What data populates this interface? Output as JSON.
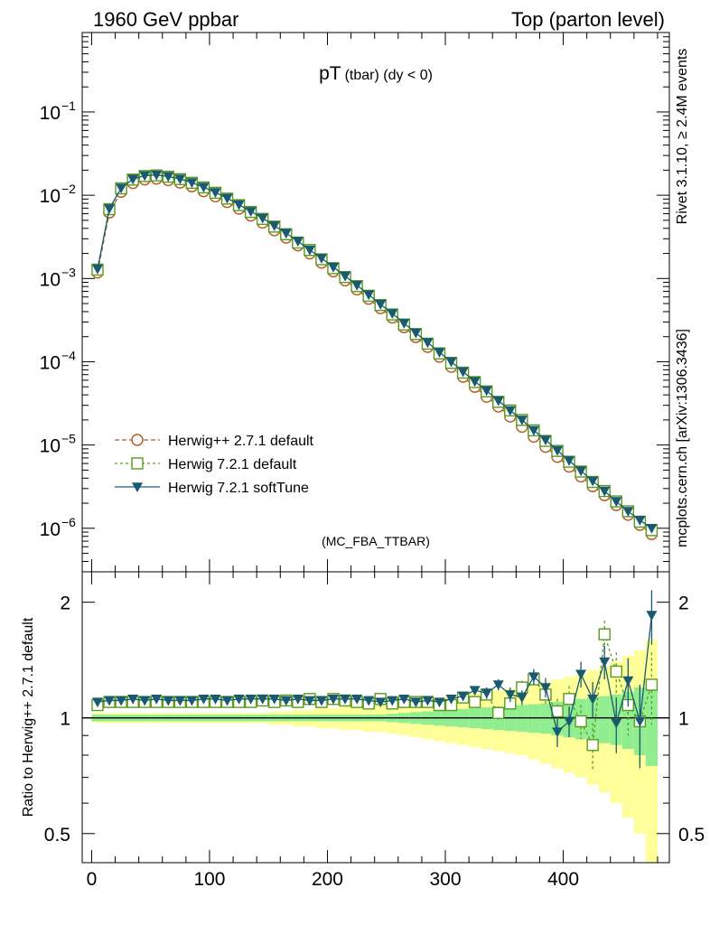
{
  "header": {
    "left": "1960 GeV ppbar",
    "right": "Top (parton level)"
  },
  "side_labels": {
    "rivet": "Rivet 3.1.10, ≥ 2.4M events",
    "mcplots": "mcplots.cern.ch [arXiv:1306.3436]"
  },
  "chart_data": [
    {
      "type": "line",
      "title": "pT (tbar) (dy < 0)",
      "title_main": "pT",
      "title_sub": "(tbar) (dy < 0)",
      "analysis_tag": "(MC_FBA_TTBAR)",
      "yscale": "log",
      "xlim": [
        -8,
        490
      ],
      "ylim": [
        3e-07,
        0.9
      ],
      "yticks": [
        {
          "value": 1e-06,
          "label": "10",
          "exp": "−6"
        },
        {
          "value": 1e-05,
          "label": "10",
          "exp": "−5"
        },
        {
          "value": 0.0001,
          "label": "10",
          "exp": "−4"
        },
        {
          "value": 0.001,
          "label": "10",
          "exp": "−3"
        },
        {
          "value": 0.01,
          "label": "10",
          "exp": "−2"
        },
        {
          "value": 0.1,
          "label": "10",
          "exp": "−1"
        }
      ],
      "legend_position": "bottom-left",
      "x": [
        5,
        15,
        25,
        35,
        45,
        55,
        65,
        75,
        85,
        95,
        105,
        115,
        125,
        135,
        145,
        155,
        165,
        175,
        185,
        195,
        205,
        215,
        225,
        235,
        245,
        255,
        265,
        275,
        285,
        295,
        305,
        315,
        325,
        335,
        345,
        355,
        365,
        375,
        385,
        395,
        405,
        415,
        425,
        435,
        445,
        455,
        465,
        475
      ],
      "series": [
        {
          "name": "Herwig++ 2.7.1 default",
          "color": "#b35a1f",
          "marker": "circle",
          "dash": "5,3",
          "values": [
            0.00118,
            0.0062,
            0.011,
            0.014,
            0.0155,
            0.0158,
            0.0152,
            0.0142,
            0.0128,
            0.0112,
            0.0097,
            0.0083,
            0.0069,
            0.0057,
            0.0047,
            0.0038,
            0.0031,
            0.0025,
            0.002,
            0.00155,
            0.00122,
            0.00095,
            0.00074,
            0.00057,
            0.00044,
            0.00034,
            0.00026,
            0.000198,
            0.000151,
            0.000115,
            8.7e-05,
            6.6e-05,
            5e-05,
            3.8e-05,
            2.9e-05,
            2.2e-05,
            1.66e-05,
            1.26e-05,
            9.5e-06,
            7.2e-06,
            5.5e-06,
            4.2e-06,
            3.2e-06,
            2.5e-06,
            1.9e-06,
            1.45e-06,
            1.1e-06,
            8.5e-07
          ]
        },
        {
          "name": "Herwig 7.2.1 default",
          "color": "#5a9a1f",
          "marker": "square",
          "dash": "3,3",
          "values": [
            0.00128,
            0.0068,
            0.0121,
            0.0154,
            0.017,
            0.0173,
            0.0167,
            0.0156,
            0.0141,
            0.0124,
            0.0107,
            0.0091,
            0.0076,
            0.0063,
            0.0052,
            0.0042,
            0.0034,
            0.0027,
            0.0022,
            0.0017,
            0.00133,
            0.00104,
            0.00081,
            0.00062,
            0.00048,
            0.00037,
            0.00028,
            0.000215,
            0.000165,
            0.000126,
            9.7e-05,
            7.4e-05,
            5.7e-05,
            4.4e-05,
            3.3e-05,
            2.6e-05,
            2e-05,
            1.5e-05,
            1.12e-05,
            8.5e-06,
            6.3e-06,
            4.8e-06,
            3.6e-06,
            2.8e-06,
            2.1e-06,
            1.6e-06,
            1.2e-06,
            9.5e-07
          ]
        },
        {
          "name": "Herwig 7.2.1 softTune",
          "color": "#1a5a70",
          "marker": "triangle-down",
          "dash": "",
          "values": [
            0.0013,
            0.0069,
            0.0122,
            0.0156,
            0.0172,
            0.0175,
            0.0168,
            0.0157,
            0.0142,
            0.0125,
            0.0108,
            0.0092,
            0.0077,
            0.0064,
            0.0053,
            0.0043,
            0.0035,
            0.0028,
            0.0022,
            0.00175,
            0.00137,
            0.00107,
            0.00083,
            0.00064,
            0.00049,
            0.00038,
            0.00029,
            0.000222,
            0.00017,
            0.00013,
            0.0001,
            7.6e-05,
            5.8e-05,
            4.5e-05,
            3.4e-05,
            2.6e-05,
            2e-05,
            1.5e-05,
            1.15e-05,
            8.6e-06,
            6.5e-06,
            4.9e-06,
            3.7e-06,
            2.8e-06,
            2.1e-06,
            1.6e-06,
            1.25e-06,
            1e-06
          ]
        }
      ]
    },
    {
      "type": "line",
      "ylabel": "Ratio to Herwig++ 2.7.1 default",
      "yscale": "log",
      "xlim": [
        -8,
        490
      ],
      "ylim": [
        0.42,
        2.4
      ],
      "xticks": [
        0,
        100,
        200,
        300,
        400
      ],
      "yticks": [
        0.5,
        1,
        2
      ],
      "yticks_label": [
        "0.5",
        "1",
        "2"
      ],
      "reference": 1,
      "x": [
        5,
        15,
        25,
        35,
        45,
        55,
        65,
        75,
        85,
        95,
        105,
        115,
        125,
        135,
        145,
        155,
        165,
        175,
        185,
        195,
        205,
        215,
        225,
        235,
        245,
        255,
        265,
        275,
        285,
        295,
        305,
        315,
        325,
        335,
        345,
        355,
        365,
        375,
        385,
        395,
        405,
        415,
        425,
        435,
        445,
        455,
        465,
        475
      ],
      "band_inner_halfwidth": [
        0.02,
        0.02,
        0.02,
        0.02,
        0.02,
        0.02,
        0.02,
        0.02,
        0.02,
        0.02,
        0.02,
        0.02,
        0.02,
        0.02,
        0.02,
        0.02,
        0.02,
        0.02,
        0.02,
        0.02,
        0.02,
        0.02,
        0.02,
        0.02,
        0.02,
        0.025,
        0.03,
        0.035,
        0.04,
        0.045,
        0.05,
        0.055,
        0.06,
        0.065,
        0.07,
        0.075,
        0.08,
        0.085,
        0.09,
        0.1,
        0.11,
        0.12,
        0.13,
        0.14,
        0.15,
        0.17,
        0.2,
        0.25
      ],
      "band_outer_halfwidth": [
        0.03,
        0.03,
        0.03,
        0.03,
        0.03,
        0.03,
        0.03,
        0.03,
        0.03,
        0.03,
        0.03,
        0.03,
        0.03,
        0.03,
        0.03,
        0.04,
        0.04,
        0.05,
        0.05,
        0.06,
        0.06,
        0.07,
        0.07,
        0.08,
        0.08,
        0.09,
        0.1,
        0.11,
        0.12,
        0.13,
        0.14,
        0.15,
        0.16,
        0.17,
        0.18,
        0.19,
        0.2,
        0.22,
        0.24,
        0.26,
        0.28,
        0.3,
        0.33,
        0.36,
        0.4,
        0.45,
        0.5,
        0.6
      ],
      "series": [
        {
          "name": "Herwig 7.2.1 default",
          "color": "#5a9a1f",
          "marker": "square",
          "dash": "3,3",
          "values": [
            1.08,
            1.1,
            1.1,
            1.1,
            1.1,
            1.1,
            1.1,
            1.1,
            1.1,
            1.1,
            1.1,
            1.1,
            1.1,
            1.1,
            1.11,
            1.1,
            1.11,
            1.1,
            1.12,
            1.1,
            1.12,
            1.11,
            1.1,
            1.09,
            1.12,
            1.09,
            1.1,
            1.1,
            1.1,
            1.08,
            1.08,
            1.13,
            1.1,
            1.15,
            1.03,
            1.09,
            1.2,
            1.26,
            1.15,
            1.04,
            1.12,
            0.98,
            0.85,
            1.65,
            1.32,
            1.08,
            0.98,
            1.22
          ],
          "errors": [
            0.01,
            0.01,
            0.01,
            0.01,
            0.01,
            0.01,
            0.01,
            0.01,
            0.01,
            0.01,
            0.01,
            0.01,
            0.01,
            0.01,
            0.01,
            0.01,
            0.01,
            0.01,
            0.01,
            0.01,
            0.01,
            0.01,
            0.01,
            0.01,
            0.02,
            0.02,
            0.02,
            0.02,
            0.02,
            0.02,
            0.03,
            0.03,
            0.03,
            0.04,
            0.04,
            0.05,
            0.05,
            0.06,
            0.07,
            0.08,
            0.09,
            0.1,
            0.12,
            0.14,
            0.16,
            0.18,
            0.22,
            0.26
          ]
        },
        {
          "name": "Herwig 7.2.1 softTune",
          "color": "#1a5a70",
          "marker": "triangle-down",
          "dash": "",
          "values": [
            1.1,
            1.11,
            1.11,
            1.12,
            1.11,
            1.12,
            1.11,
            1.11,
            1.11,
            1.12,
            1.12,
            1.11,
            1.12,
            1.12,
            1.12,
            1.12,
            1.11,
            1.12,
            1.11,
            1.11,
            1.12,
            1.12,
            1.12,
            1.11,
            1.1,
            1.11,
            1.12,
            1.1,
            1.11,
            1.1,
            1.12,
            1.14,
            1.18,
            1.16,
            1.22,
            1.15,
            1.13,
            1.28,
            1.2,
            0.92,
            0.98,
            1.3,
            1.12,
            1.4,
            0.97,
            1.25,
            0.98,
            1.85
          ],
          "errors": [
            0.01,
            0.01,
            0.01,
            0.01,
            0.01,
            0.01,
            0.01,
            0.01,
            0.01,
            0.01,
            0.01,
            0.01,
            0.01,
            0.01,
            0.01,
            0.01,
            0.01,
            0.01,
            0.01,
            0.01,
            0.01,
            0.01,
            0.01,
            0.01,
            0.02,
            0.02,
            0.02,
            0.02,
            0.02,
            0.02,
            0.03,
            0.03,
            0.03,
            0.04,
            0.04,
            0.05,
            0.05,
            0.06,
            0.07,
            0.08,
            0.09,
            0.1,
            0.12,
            0.14,
            0.16,
            0.18,
            0.24,
            0.3
          ]
        }
      ]
    }
  ],
  "colors": {
    "band_inner": "#90ee90",
    "band_outer": "#ffff99",
    "reference_line": "#000000",
    "side_text": "#808080",
    "analysis_tag": "#808080"
  }
}
